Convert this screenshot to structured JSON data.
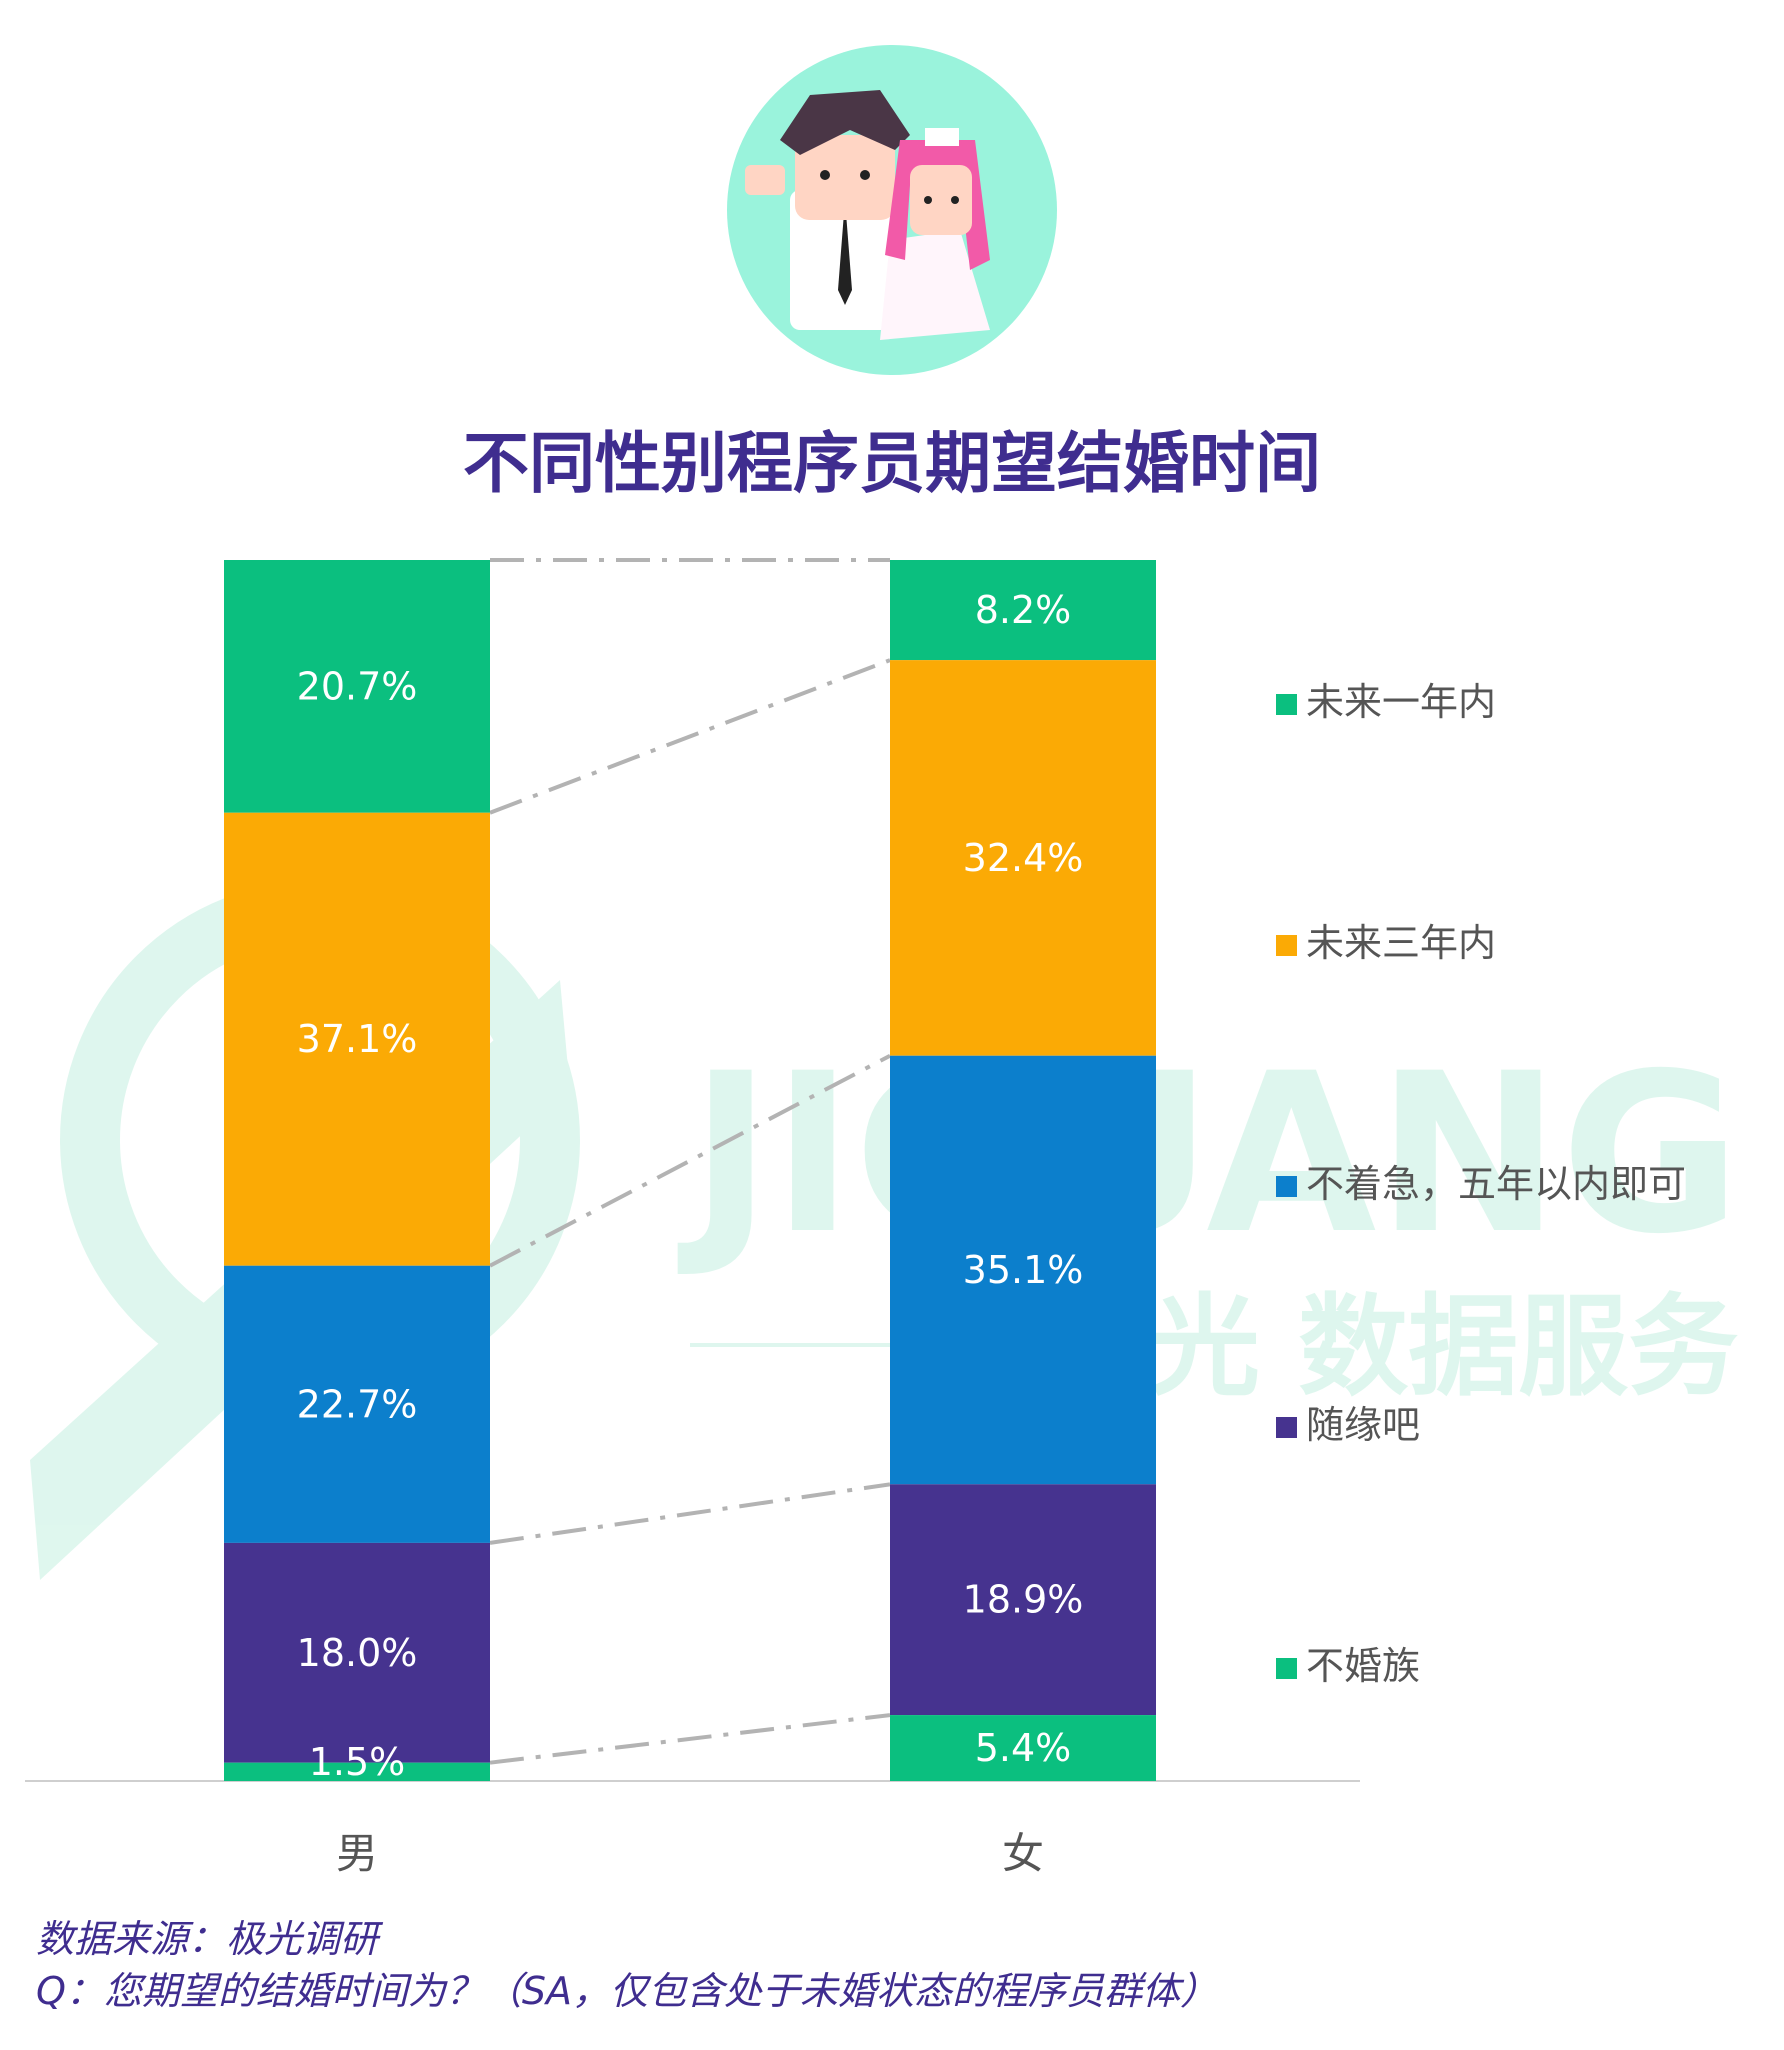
{
  "title": "不同性别程序员期望结婚时间",
  "watermark": {
    "brand": "JIGUANG",
    "tagline": "极光 数据服务"
  },
  "source": {
    "line1": "数据来源：极光调研",
    "line2": "Q：您期望的结婚时间为？（SA，仅包含处于未婚状态的程序员群体）"
  },
  "colors": {
    "green": "#0bbf7f",
    "orange": "#fbaa05",
    "blue": "#0c7fcc",
    "purple": "#46338f",
    "title": "#3f2d8f"
  },
  "chart_data": {
    "type": "bar",
    "stacked": true,
    "categories": [
      "男",
      "女"
    ],
    "series": [
      {
        "name": "未来一年内",
        "color": "#0bbf7f",
        "values": [
          20.7,
          8.2
        ]
      },
      {
        "name": "未来三年内",
        "color": "#fbaa05",
        "values": [
          37.1,
          32.4
        ]
      },
      {
        "name": "不着急，五年以内即可",
        "color": "#0c7fcc",
        "values": [
          22.7,
          35.1
        ]
      },
      {
        "name": "随缘吧",
        "color": "#46338f",
        "values": [
          18.0,
          18.9
        ]
      },
      {
        "name": "不婚族",
        "color": "#0bbf7f",
        "values": [
          1.5,
          5.4
        ]
      }
    ],
    "labels": [
      [
        "20.7%",
        "8.2%"
      ],
      [
        "37.1%",
        "32.4%"
      ],
      [
        "22.7%",
        "35.1%"
      ],
      [
        "18.0%",
        "18.9%"
      ],
      [
        "1.5%",
        "5.4%"
      ]
    ],
    "ylim": [
      0,
      100
    ],
    "legend": "right",
    "grid": false
  }
}
